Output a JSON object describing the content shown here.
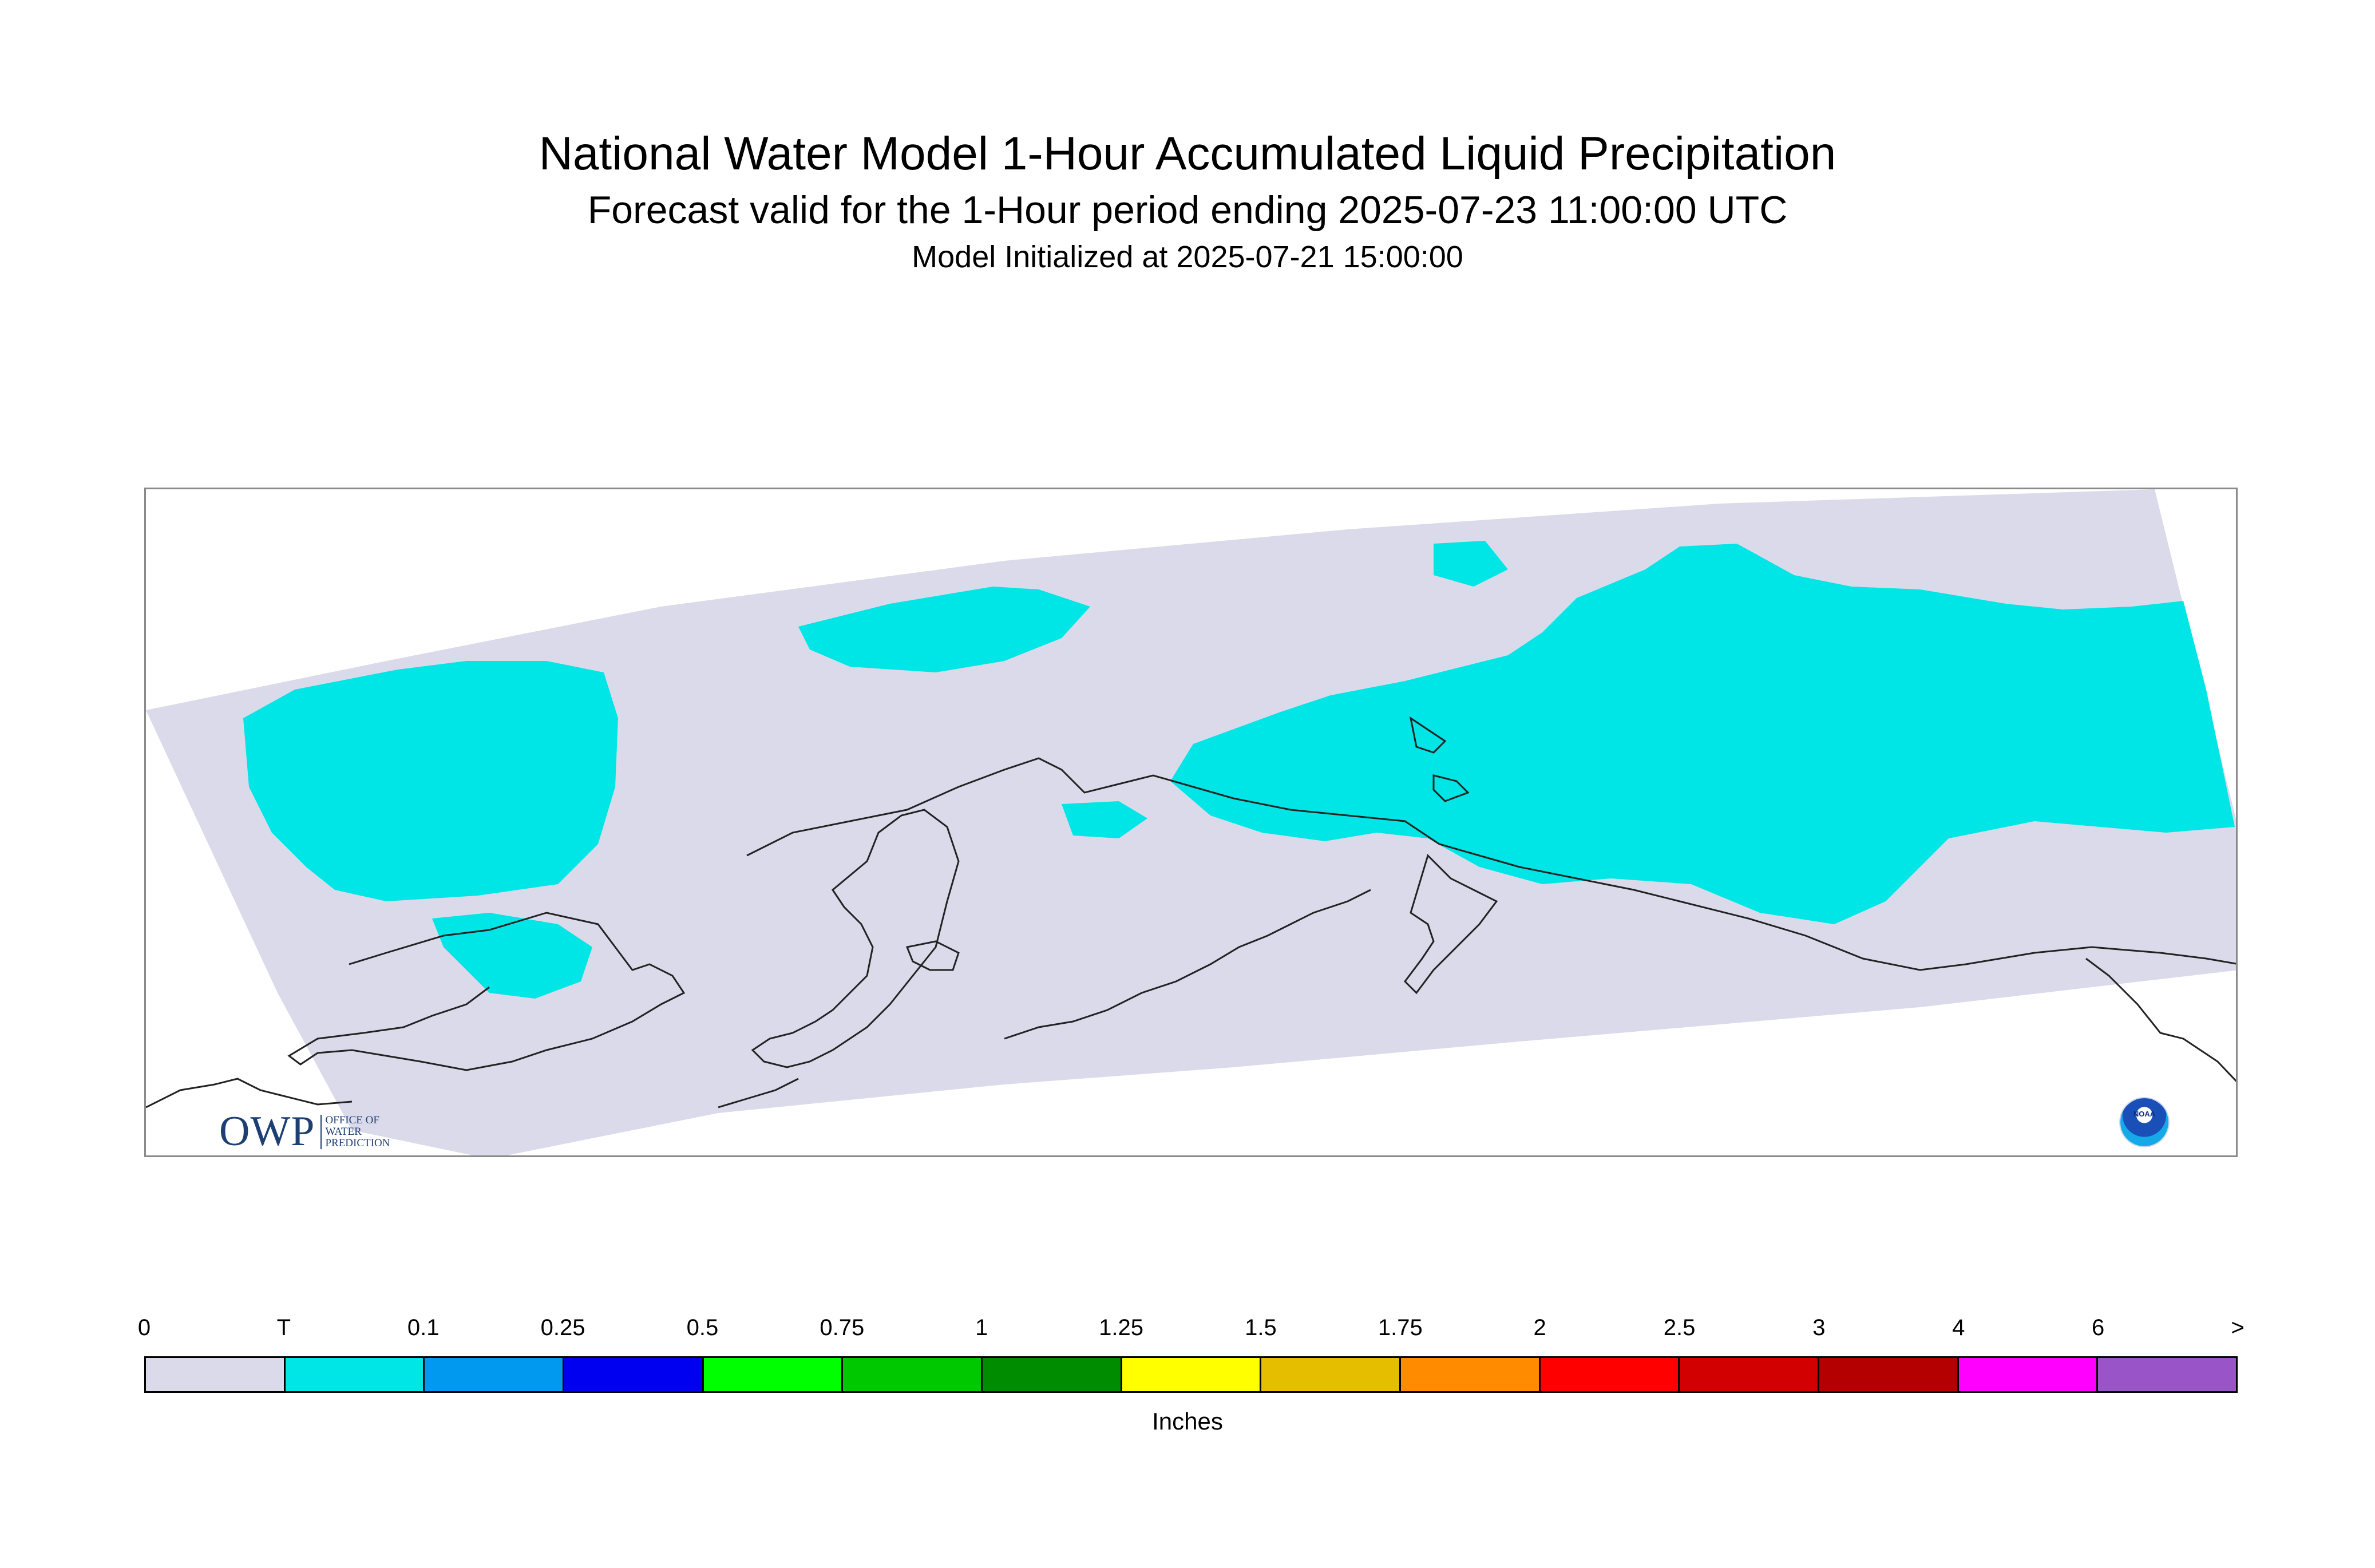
{
  "title": "National Water Model 1-Hour Accumulated Liquid Precipitation",
  "subtitle": "Forecast valid for the 1-Hour period ending 2025-07-23 11:00:00 UTC",
  "initialized": "Model Initialized at 2025-07-21 15:00:00",
  "map": {
    "domain_fill": "#dadaeb",
    "precip_fill": "#00e5e5",
    "coastline_color": "#000000",
    "logos": {
      "owp": {
        "mark": "OWP",
        "lines": [
          "OFFICE OF",
          "WATER",
          "PREDICTION"
        ]
      },
      "noaa": {
        "text": "NOAA"
      }
    }
  },
  "legend": {
    "ticks": [
      "0",
      "T",
      "0.1",
      "0.25",
      "0.5",
      "0.75",
      "1",
      "1.25",
      "1.5",
      "1.75",
      "2",
      "2.5",
      "3",
      "4",
      "6",
      ">"
    ],
    "colors": [
      "#dadaeb",
      "#00e5e5",
      "#0099f0",
      "#0000f0",
      "#00ff00",
      "#00c800",
      "#008c00",
      "#ffff00",
      "#e6be00",
      "#ff8c00",
      "#ff0000",
      "#d20000",
      "#b40000",
      "#ff00ff",
      "#9955c8"
    ],
    "units": "Inches"
  }
}
